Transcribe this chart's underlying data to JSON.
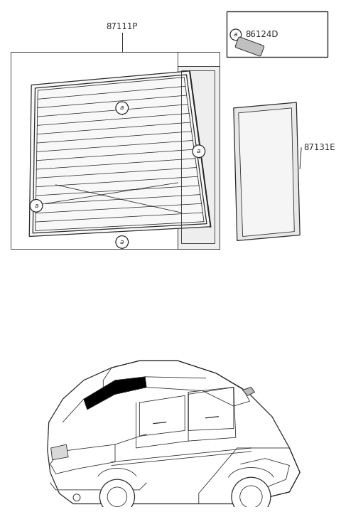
{
  "bg_color": "#ffffff",
  "line_color": "#2a2a2a",
  "part_87111P": "87111P",
  "part_86124D": "86124D",
  "part_87131E": "87131E",
  "label_a": "a",
  "n_defroster_lines": 15
}
